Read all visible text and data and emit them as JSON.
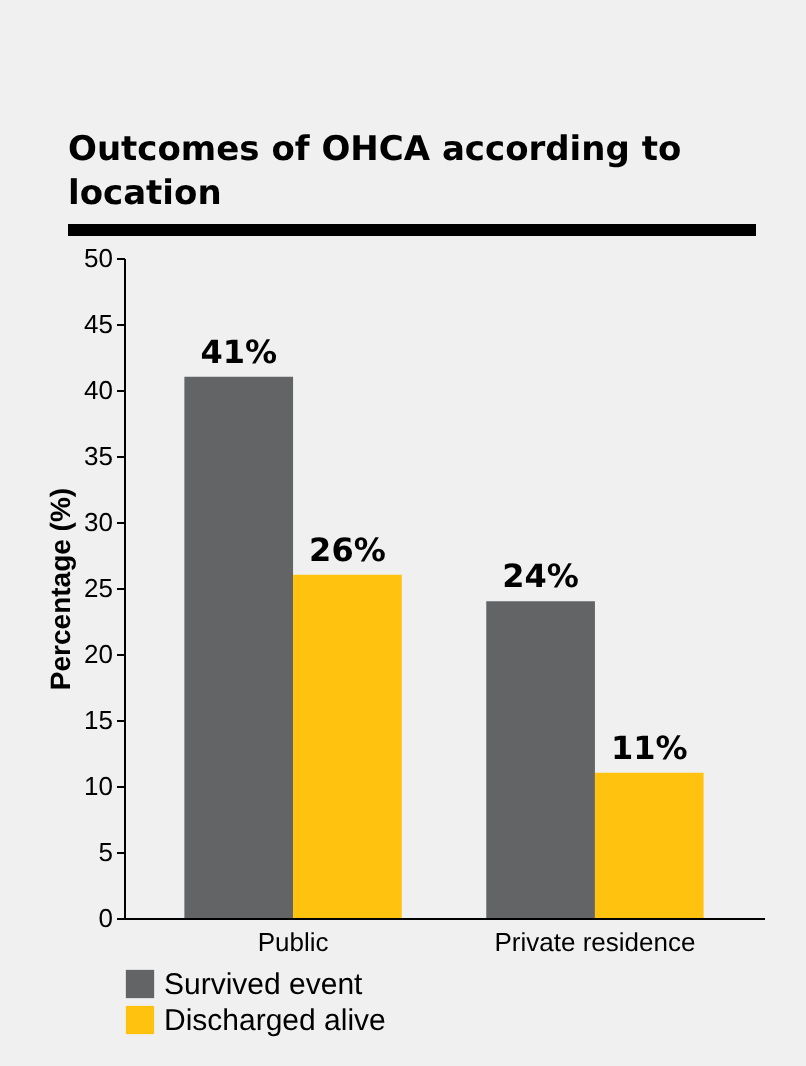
{
  "chart_data": {
    "type": "bar",
    "title": "Outcomes of OHCA according to location",
    "ylabel": "Percentage (%)",
    "categories": [
      "Public",
      "Private residence"
    ],
    "series": [
      {
        "name": "Survived event",
        "color": "#636466",
        "values": [
          41,
          24
        ],
        "value_labels": [
          "41%",
          "24%"
        ]
      },
      {
        "name": "Discharged alive",
        "color": "#ffc20e",
        "values": [
          26,
          11
        ],
        "value_labels": [
          "26%",
          "11%"
        ]
      }
    ],
    "ylim": [
      0,
      50
    ],
    "yticks": [
      0,
      5,
      10,
      15,
      20,
      25,
      30,
      35,
      40,
      45,
      50
    ],
    "legend": "bottom left",
    "grid": false
  }
}
